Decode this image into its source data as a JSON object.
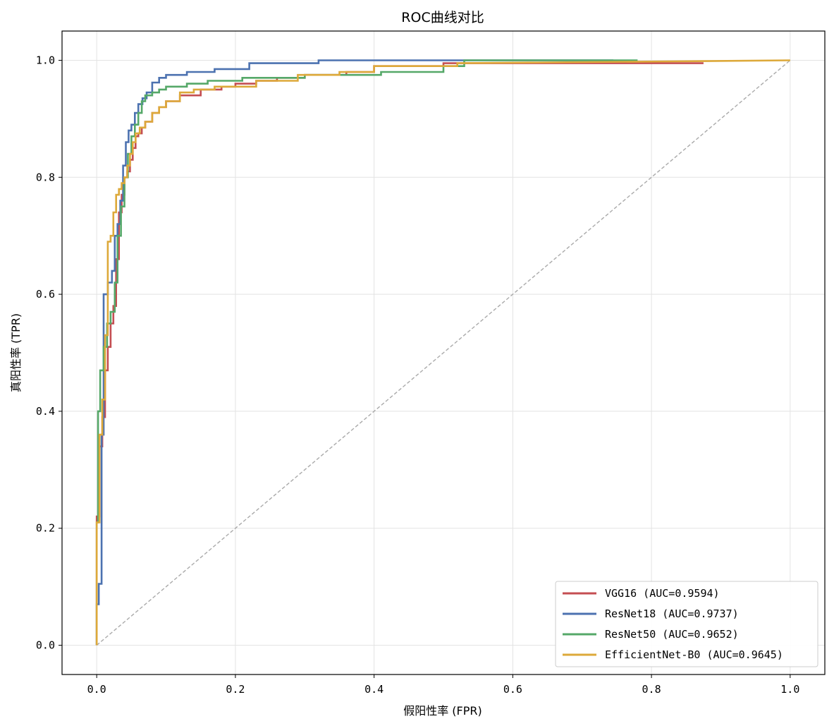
{
  "chart_data": {
    "type": "line",
    "title": "ROC曲线对比",
    "xlabel": "假阳性率 (FPR)",
    "ylabel": "真阳性率 (TPR)",
    "xlim": [
      -0.05,
      1.05
    ],
    "ylim": [
      -0.05,
      1.05
    ],
    "xticks": [
      0.0,
      0.2,
      0.4,
      0.6,
      0.8,
      1.0
    ],
    "yticks": [
      0.0,
      0.2,
      0.4,
      0.6,
      0.8,
      1.0
    ],
    "xtick_labels": [
      "0.0",
      "0.2",
      "0.4",
      "0.6",
      "0.8",
      "1.0"
    ],
    "ytick_labels": [
      "0.0",
      "0.2",
      "0.4",
      "0.6",
      "0.8",
      "1.0"
    ],
    "grid": true,
    "legend_position": "bottom-right",
    "diagonal": {
      "x": [
        0,
        1
      ],
      "y": [
        0,
        1
      ],
      "color": "#aaaaaa",
      "style": "dashed"
    },
    "series": [
      {
        "name": "VGG16 (AUC=0.9594)",
        "color": "#c44e52",
        "x": [
          0,
          0,
          0.004,
          0.004,
          0.008,
          0.008,
          0.012,
          0.012,
          0.016,
          0.016,
          0.02,
          0.02,
          0.024,
          0.024,
          0.028,
          0.028,
          0.032,
          0.032,
          0.036,
          0.036,
          0.04,
          0.04,
          0.044,
          0.044,
          0.048,
          0.048,
          0.052,
          0.052,
          0.056,
          0.056,
          0.06,
          0.06,
          0.065,
          0.065,
          0.07,
          0.07,
          0.08,
          0.08,
          0.09,
          0.09,
          0.1,
          0.1,
          0.12,
          0.12,
          0.15,
          0.15,
          0.18,
          0.18,
          0.2,
          0.2,
          0.23,
          0.23,
          0.26,
          0.26,
          0.3,
          0.3,
          0.36,
          0.36,
          0.4,
          0.4,
          0.5,
          0.5,
          0.78,
          0.78,
          0.875
        ],
        "y": [
          0,
          0.22,
          0.22,
          0.34,
          0.34,
          0.39,
          0.39,
          0.47,
          0.47,
          0.51,
          0.51,
          0.55,
          0.55,
          0.58,
          0.58,
          0.66,
          0.66,
          0.74,
          0.74,
          0.77,
          0.77,
          0.8,
          0.8,
          0.81,
          0.81,
          0.83,
          0.83,
          0.85,
          0.85,
          0.87,
          0.87,
          0.875,
          0.875,
          0.885,
          0.885,
          0.895,
          0.895,
          0.91,
          0.91,
          0.92,
          0.92,
          0.93,
          0.93,
          0.94,
          0.94,
          0.95,
          0.95,
          0.955,
          0.955,
          0.96,
          0.96,
          0.965,
          0.965,
          0.97,
          0.97,
          0.975,
          0.975,
          0.98,
          0.98,
          0.99,
          0.99,
          0.995,
          0.995,
          0.995,
          0.995
        ]
      },
      {
        "name": "ResNet18 (AUC=0.9737)",
        "color": "#4c72b0",
        "x": [
          0,
          0,
          0.003,
          0.003,
          0.007,
          0.007,
          0.01,
          0.01,
          0.013,
          0.013,
          0.016,
          0.016,
          0.022,
          0.022,
          0.026,
          0.026,
          0.03,
          0.03,
          0.034,
          0.034,
          0.038,
          0.038,
          0.042,
          0.042,
          0.046,
          0.046,
          0.05,
          0.05,
          0.055,
          0.055,
          0.06,
          0.06,
          0.066,
          0.066,
          0.072,
          0.072,
          0.08,
          0.08,
          0.09,
          0.09,
          0.1,
          0.1,
          0.13,
          0.13,
          0.17,
          0.17,
          0.22,
          0.22,
          0.32,
          0.32,
          0.745
        ],
        "y": [
          0,
          0.07,
          0.07,
          0.105,
          0.105,
          0.36,
          0.36,
          0.6,
          0.6,
          0.6,
          0.6,
          0.62,
          0.62,
          0.64,
          0.64,
          0.7,
          0.7,
          0.72,
          0.72,
          0.76,
          0.76,
          0.82,
          0.82,
          0.86,
          0.86,
          0.88,
          0.88,
          0.89,
          0.89,
          0.91,
          0.91,
          0.925,
          0.925,
          0.935,
          0.935,
          0.945,
          0.945,
          0.962,
          0.962,
          0.97,
          0.97,
          0.975,
          0.975,
          0.98,
          0.98,
          0.985,
          0.985,
          0.995,
          0.995,
          1.0,
          1.0
        ]
      },
      {
        "name": "ResNet50 (AUC=0.9652)",
        "color": "#55a868",
        "x": [
          0,
          0,
          0.002,
          0.002,
          0.005,
          0.005,
          0.01,
          0.01,
          0.015,
          0.015,
          0.02,
          0.02,
          0.026,
          0.026,
          0.03,
          0.03,
          0.035,
          0.035,
          0.04,
          0.04,
          0.045,
          0.045,
          0.05,
          0.05,
          0.055,
          0.055,
          0.06,
          0.06,
          0.065,
          0.065,
          0.07,
          0.07,
          0.08,
          0.08,
          0.09,
          0.09,
          0.1,
          0.1,
          0.13,
          0.13,
          0.16,
          0.16,
          0.21,
          0.21,
          0.3,
          0.3,
          0.41,
          0.41,
          0.5,
          0.5,
          0.53,
          0.53,
          0.78
        ],
        "y": [
          0,
          0.21,
          0.21,
          0.4,
          0.4,
          0.47,
          0.47,
          0.51,
          0.51,
          0.55,
          0.55,
          0.57,
          0.57,
          0.62,
          0.62,
          0.7,
          0.7,
          0.75,
          0.75,
          0.8,
          0.8,
          0.84,
          0.84,
          0.87,
          0.87,
          0.89,
          0.89,
          0.91,
          0.91,
          0.93,
          0.93,
          0.94,
          0.94,
          0.945,
          0.945,
          0.95,
          0.95,
          0.955,
          0.955,
          0.96,
          0.96,
          0.965,
          0.965,
          0.97,
          0.97,
          0.975,
          0.975,
          0.98,
          0.98,
          0.99,
          0.99,
          1.0,
          1.0
        ]
      },
      {
        "name": "EfficientNet-B0 (AUC=0.9645)",
        "color": "#dda93a",
        "x": [
          0,
          0,
          0.004,
          0.004,
          0.008,
          0.008,
          0.012,
          0.012,
          0.016,
          0.016,
          0.02,
          0.02,
          0.024,
          0.024,
          0.028,
          0.028,
          0.032,
          0.032,
          0.036,
          0.036,
          0.04,
          0.04,
          0.044,
          0.044,
          0.048,
          0.048,
          0.052,
          0.052,
          0.056,
          0.056,
          0.062,
          0.062,
          0.07,
          0.07,
          0.08,
          0.08,
          0.09,
          0.09,
          0.1,
          0.1,
          0.12,
          0.12,
          0.14,
          0.14,
          0.17,
          0.17,
          0.23,
          0.23,
          0.29,
          0.29,
          0.35,
          0.35,
          0.4,
          0.4,
          0.52,
          0.52,
          1.0
        ],
        "y": [
          0,
          0.21,
          0.21,
          0.36,
          0.36,
          0.42,
          0.42,
          0.53,
          0.53,
          0.69,
          0.69,
          0.7,
          0.7,
          0.74,
          0.74,
          0.77,
          0.77,
          0.78,
          0.78,
          0.79,
          0.79,
          0.8,
          0.8,
          0.82,
          0.82,
          0.84,
          0.84,
          0.86,
          0.86,
          0.875,
          0.875,
          0.885,
          0.885,
          0.895,
          0.895,
          0.91,
          0.91,
          0.92,
          0.92,
          0.93,
          0.93,
          0.945,
          0.945,
          0.95,
          0.95,
          0.955,
          0.955,
          0.965,
          0.965,
          0.975,
          0.975,
          0.98,
          0.98,
          0.99,
          0.99,
          0.995,
          1.0
        ]
      }
    ]
  }
}
